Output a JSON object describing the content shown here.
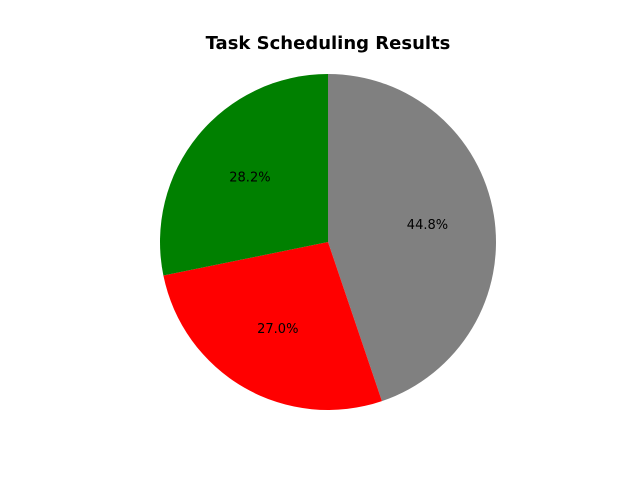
{
  "chart_data": {
    "type": "pie",
    "title": "Task Scheduling Results",
    "slices": [
      {
        "value": 44.8,
        "label": "44.8%",
        "color": "#808080"
      },
      {
        "value": 27.0,
        "label": "27.0%",
        "color": "#ff0000"
      },
      {
        "value": 28.2,
        "label": "28.2%",
        "color": "#008000"
      }
    ],
    "start_angle_deg": 90,
    "direction": "clockwise"
  }
}
